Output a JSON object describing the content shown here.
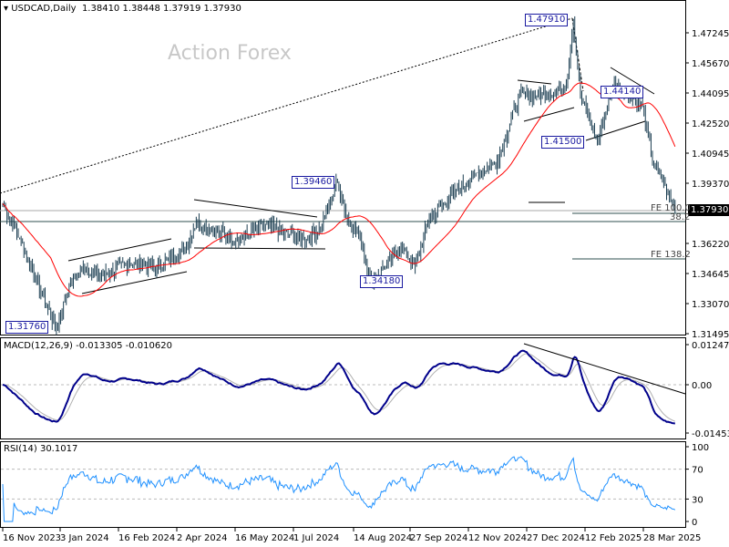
{
  "header": {
    "symbol": "USDCAD,Daily",
    "ohlc": "1.38410 1.38448 1.37919 1.37930"
  },
  "watermark": "Action Forex",
  "current_price": "1.37930",
  "annotations": {
    "high": "1.47910",
    "p1": "1.39460",
    "p2": "1.34180",
    "low": "1.31760",
    "p3": "1.44140",
    "p4": "1.41500",
    "fe100": "FE 100.0",
    "fe382": "38.2",
    "fe1382": "FE 138.2"
  },
  "macd": {
    "label": "MACD(12,26,9) -0.013305 -0.010620",
    "ticks": [
      "0.012479",
      "0.00",
      "-0.014533"
    ]
  },
  "rsi": {
    "label": "RSI(14) 30.1017",
    "ticks": [
      "100",
      "70",
      "30",
      "0"
    ]
  },
  "chart_data": {
    "type": "candlestick",
    "title": "USDCAD, Daily",
    "yticks": [
      "1.47245",
      "1.45670",
      "1.44095",
      "1.42520",
      "1.40945",
      "1.39370",
      "1.36220",
      "1.34645",
      "1.33070",
      "1.31495"
    ],
    "ylim": [
      1.31495,
      1.48
    ],
    "xticks": [
      "16 Nov 2023",
      "3 Jan 2024",
      "16 Feb 2024",
      "2 Apr 2024",
      "16 May 2024",
      "1 Jul 2024",
      "14 Aug 2024",
      "27 Sep 2024",
      "12 Nov 2024",
      "27 Dec 2024",
      "12 Feb 2025",
      "28 Mar 2025"
    ],
    "close_keypoints": [
      [
        0,
        1.383
      ],
      [
        12,
        1.365
      ],
      [
        28,
        1.335
      ],
      [
        38,
        1.3176
      ],
      [
        47,
        1.34
      ],
      [
        57,
        1.35
      ],
      [
        70,
        1.345
      ],
      [
        89,
        1.352
      ],
      [
        109,
        1.35
      ],
      [
        128,
        1.358
      ],
      [
        137,
        1.373
      ],
      [
        153,
        1.368
      ],
      [
        166,
        1.364
      ],
      [
        186,
        1.372
      ],
      [
        212,
        1.364
      ],
      [
        225,
        1.37
      ],
      [
        237,
        1.3946
      ],
      [
        244,
        1.375
      ],
      [
        253,
        1.365
      ],
      [
        261,
        1.3418
      ],
      [
        270,
        1.35
      ],
      [
        282,
        1.36
      ],
      [
        292,
        1.35
      ],
      [
        302,
        1.375
      ],
      [
        321,
        1.39
      ],
      [
        334,
        1.398
      ],
      [
        350,
        1.405
      ],
      [
        366,
        1.44
      ],
      [
        386,
        1.44
      ],
      [
        399,
        1.445
      ],
      [
        404,
        1.4791
      ],
      [
        409,
        1.44
      ],
      [
        421,
        1.415
      ],
      [
        432,
        1.445
      ],
      [
        444,
        1.44
      ],
      [
        453,
        1.434
      ],
      [
        460,
        1.405
      ],
      [
        467,
        1.395
      ],
      [
        476,
        1.3793
      ]
    ],
    "ma_color": "#ff0000",
    "bar_color": "#1c3f52",
    "macd_color": "#00008b",
    "signal_color": "#b0b0b0",
    "rsi_color": "#1e90ff"
  }
}
